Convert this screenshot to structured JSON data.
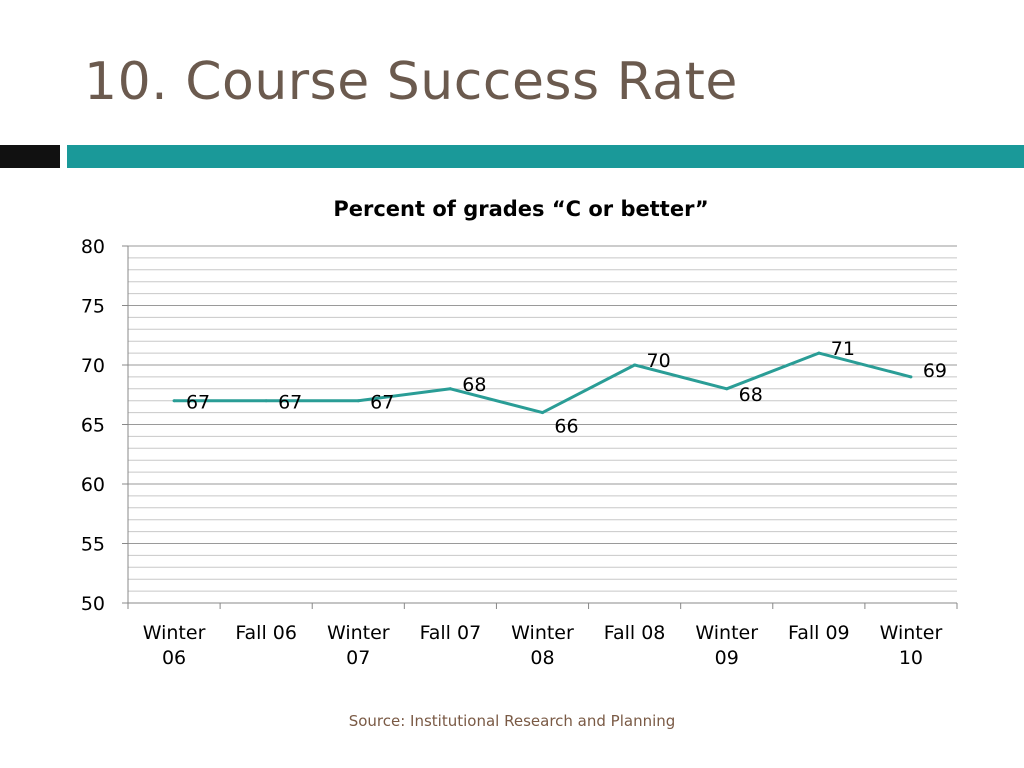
{
  "slide": {
    "title": "10. Course Success Rate",
    "source": "Source: Institutional Research and Planning"
  },
  "colors": {
    "title": "#6b5a4e",
    "accent_bar": "#1a9999",
    "series_line": "#2a9d96",
    "source": "#7a5a45"
  },
  "chart_data": {
    "type": "line",
    "title": "Percent of grades “C or better”",
    "categories": [
      [
        "Winter",
        "06"
      ],
      [
        "Fall 06"
      ],
      [
        "Winter",
        "07"
      ],
      [
        "Fall 07"
      ],
      [
        "Winter",
        "08"
      ],
      [
        "Fall 08"
      ],
      [
        "Winter",
        "09"
      ],
      [
        "Fall 09"
      ],
      [
        "Winter",
        "10"
      ]
    ],
    "series": [
      {
        "values": [
          67,
          67,
          67,
          68,
          66,
          70,
          68,
          71,
          69
        ]
      }
    ],
    "data_labels": [
      "67",
      "67",
      "67",
      "68",
      "66",
      "70",
      "68",
      "71",
      "69"
    ],
    "ylim": [
      50,
      80
    ],
    "yticks": [
      "50",
      "55",
      "60",
      "65",
      "70",
      "75",
      "80"
    ],
    "minor_gridlines": true,
    "legend": "none"
  }
}
